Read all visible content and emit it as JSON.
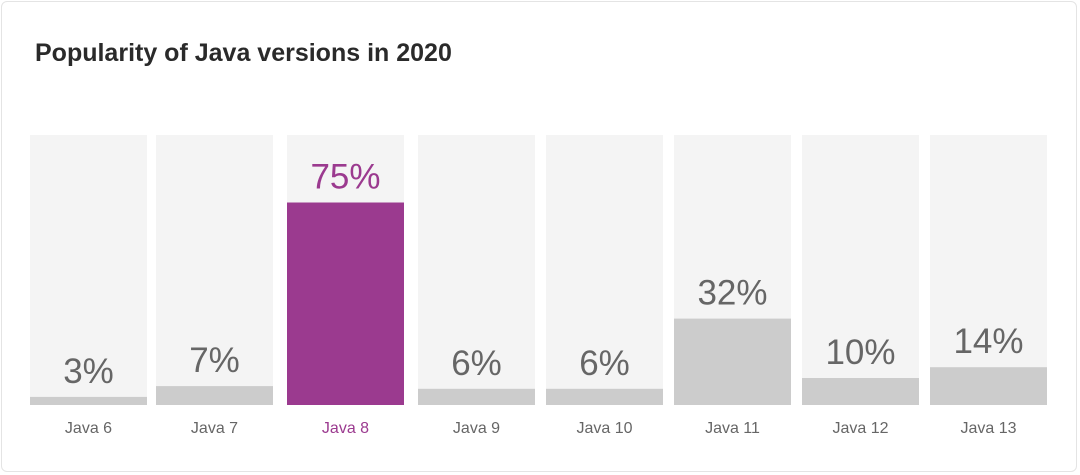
{
  "chart_data": {
    "type": "bar",
    "title": "Popularity of Java versions in 2020",
    "categories": [
      "Java 6",
      "Java 7",
      "Java 8",
      "Java 9",
      "Java 10",
      "Java 11",
      "Java 12",
      "Java 13"
    ],
    "values": [
      3,
      7,
      75,
      6,
      6,
      32,
      10,
      14
    ],
    "value_labels": [
      "3%",
      "7%",
      "75%",
      "6%",
      "6%",
      "32%",
      "10%",
      "14%"
    ],
    "ylim": [
      0,
      100
    ],
    "highlight_index": 2,
    "grid": false,
    "colors": {
      "bar": "#cccccc",
      "track": "#f4f4f4",
      "highlight": "#9b3a8f",
      "label": "#666666"
    }
  }
}
